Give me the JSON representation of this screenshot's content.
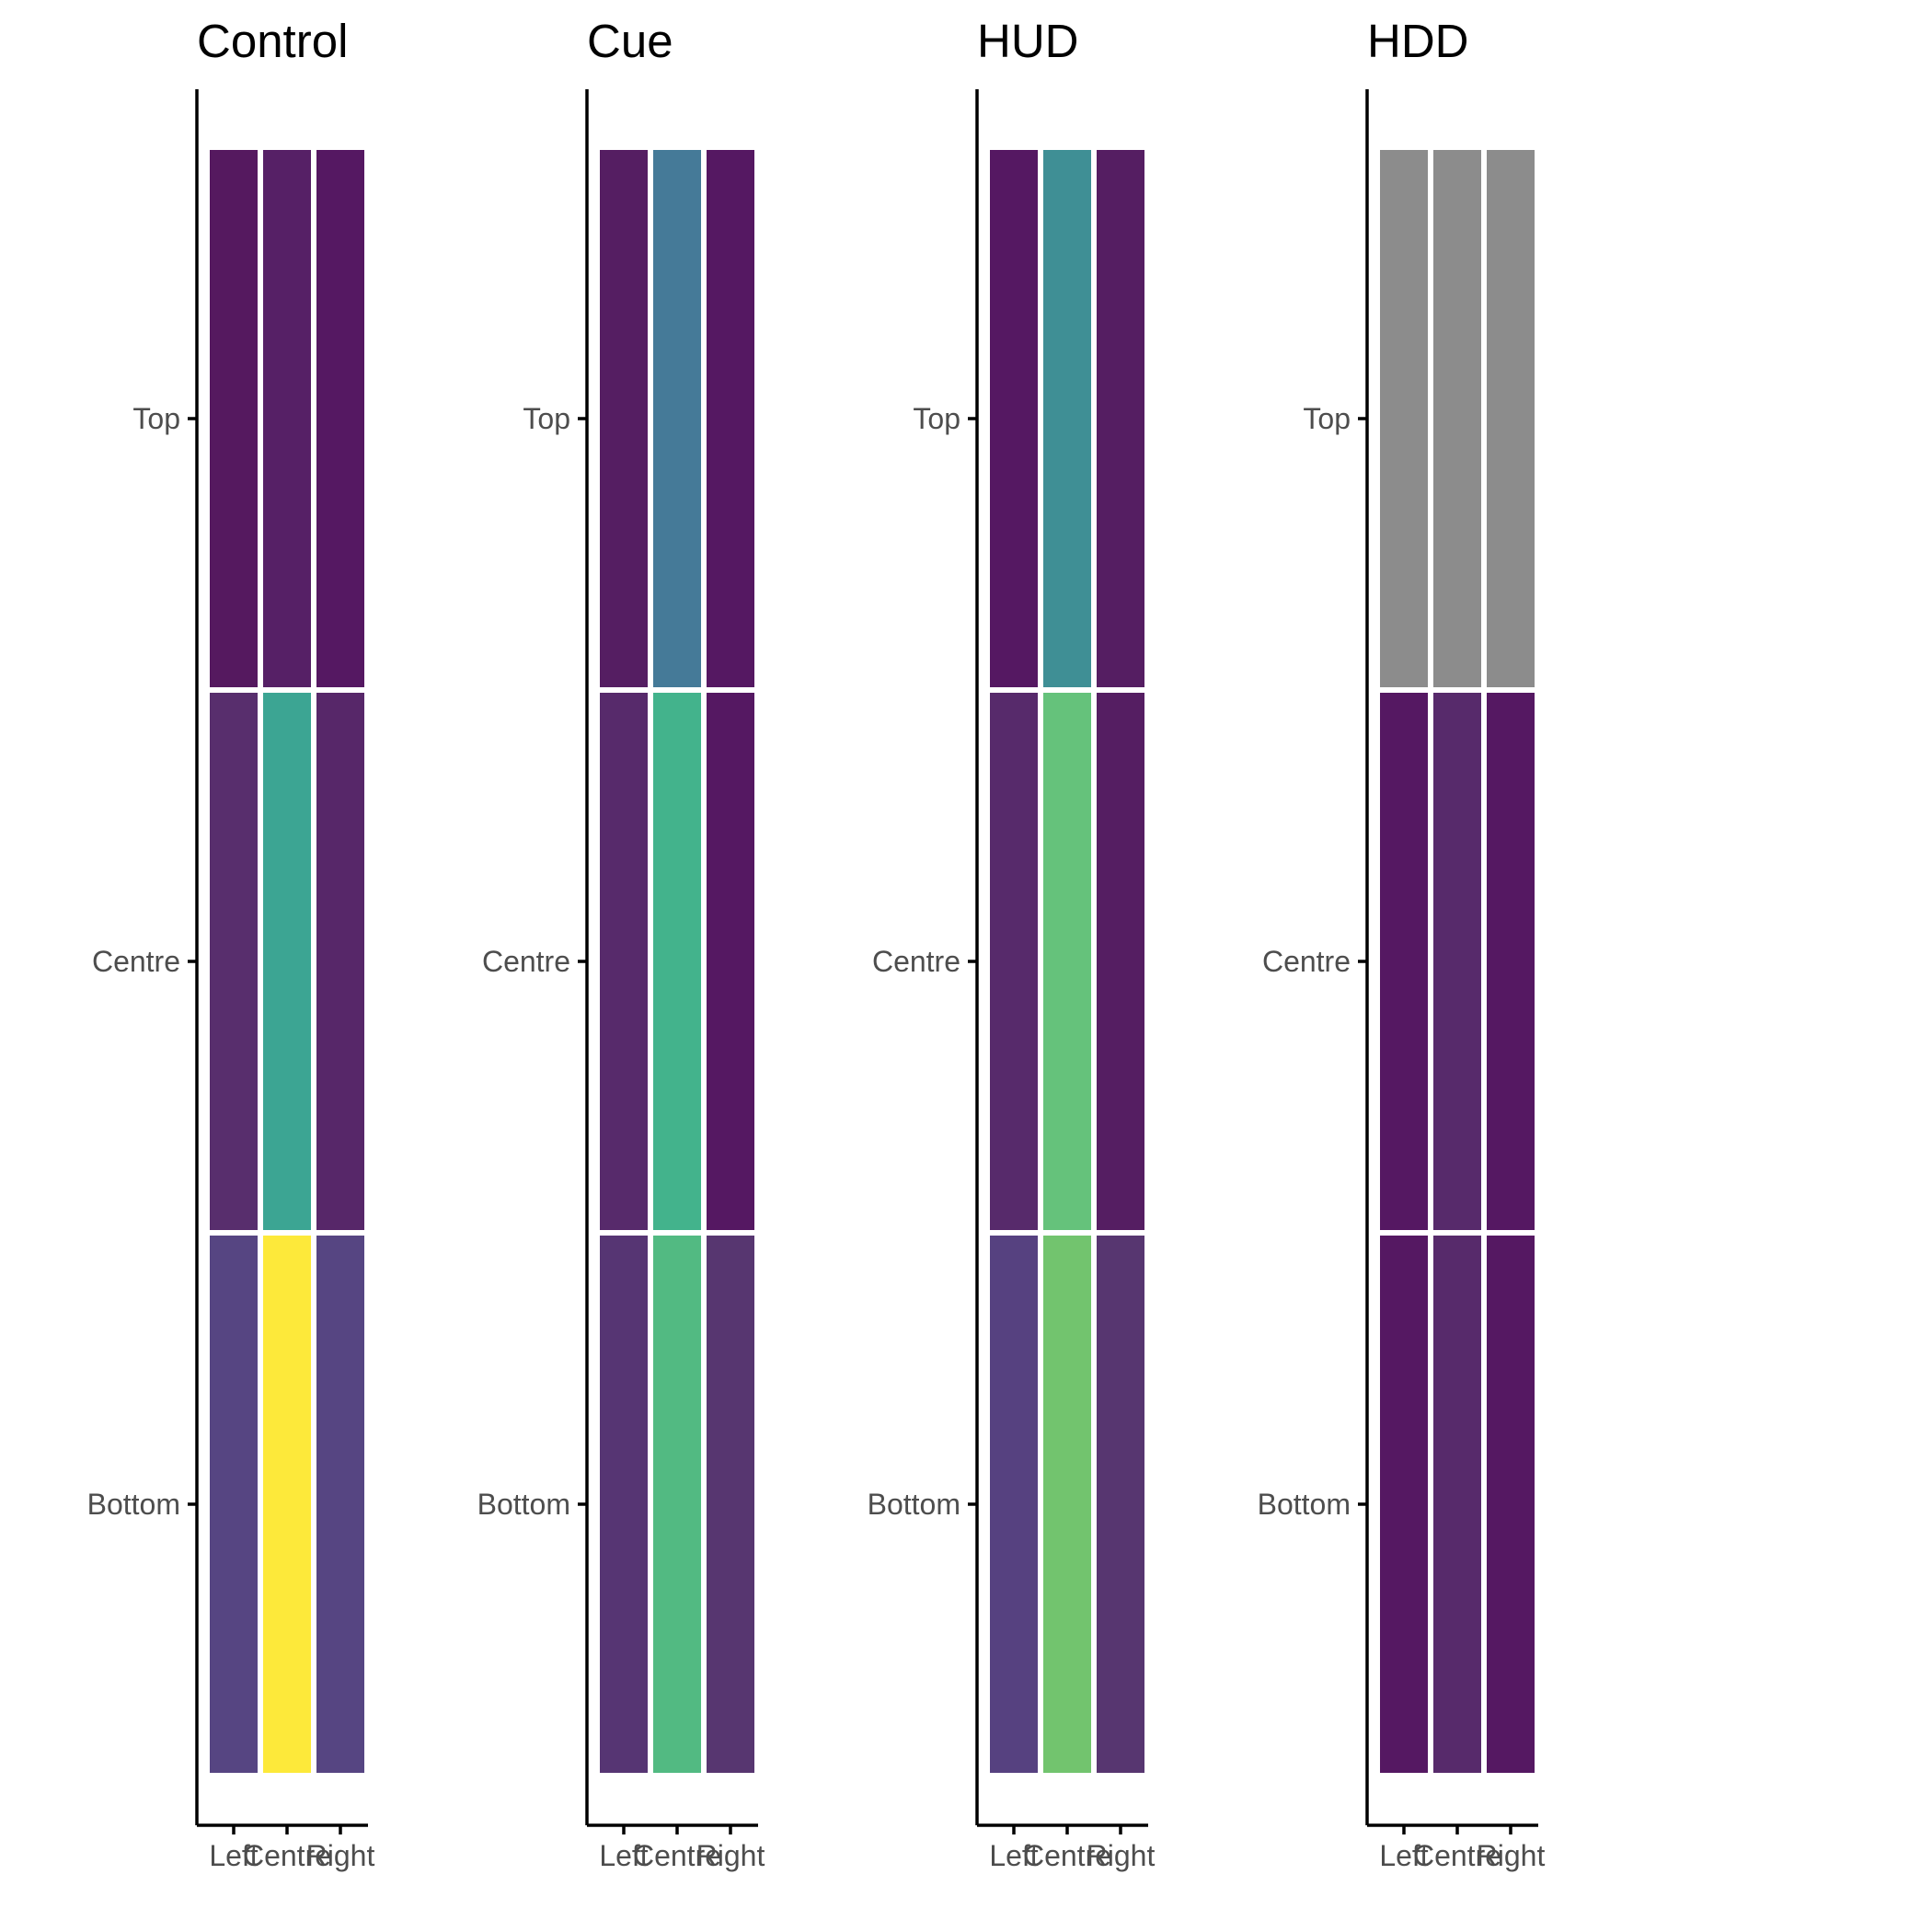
{
  "chart_data": {
    "type": "heatmap",
    "title": "",
    "xlabel": "",
    "ylabel": "",
    "x_categories": [
      "Left",
      "Centre",
      "Right"
    ],
    "y_categories": [
      "Bottom",
      "Centre",
      "Top"
    ],
    "legend": "none",
    "grid": false,
    "panels": [
      {
        "title": "Control",
        "colors": {
          "Top": [
            "#55195f",
            "#562066",
            "#551862"
          ],
          "Centre": [
            "#582e6d",
            "#3ca593",
            "#572769"
          ],
          "Bottom": [
            "#564582",
            "#fde93a",
            "#564582"
          ]
        }
      },
      {
        "title": "Cue",
        "colors": {
          "Top": [
            "#551e62",
            "#457a98",
            "#551862"
          ],
          "Centre": [
            "#572a6b",
            "#43b38c",
            "#551862"
          ],
          "Bottom": [
            "#563573",
            "#52ba82",
            "#573670"
          ]
        }
      },
      {
        "title": "HUD",
        "colors": {
          "Top": [
            "#551862",
            "#3f8f95",
            "#551e62"
          ],
          "Centre": [
            "#572a6b",
            "#65c27b",
            "#551e62"
          ],
          "Bottom": [
            "#564180",
            "#72c46e",
            "#573670"
          ]
        }
      },
      {
        "title": "HDD",
        "colors": {
          "Top": [
            "#8c8c8c",
            "#8c8c8c",
            "#8c8c8c"
          ],
          "Centre": [
            "#551862",
            "#572a6b",
            "#551862"
          ],
          "Bottom": [
            "#551862",
            "#572a6b",
            "#551862"
          ]
        }
      }
    ]
  }
}
